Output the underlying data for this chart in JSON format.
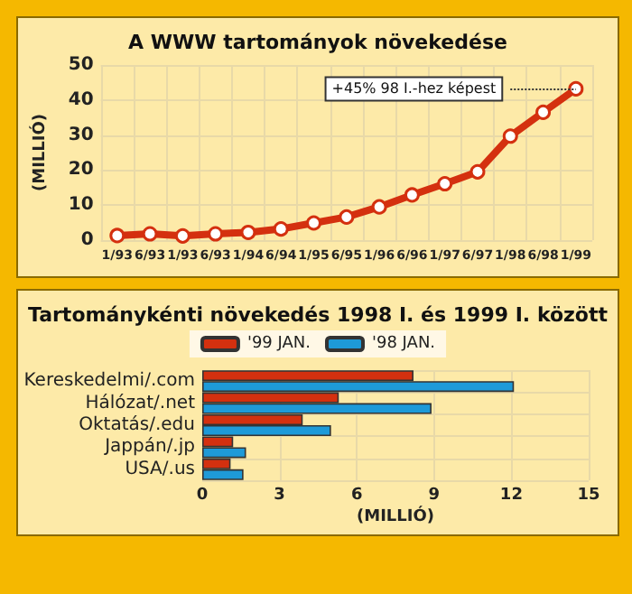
{
  "chart_data": [
    {
      "type": "line",
      "title": "A WWW tartományok növekedése",
      "ylabel": "(MILLIÓ)",
      "categories": [
        "1/93",
        "6/93",
        "1/93",
        "6/93",
        "1/94",
        "6/94",
        "1/95",
        "6/95",
        "1/96",
        "6/96",
        "1/97",
        "6/97",
        "1/98",
        "6/98",
        "1/99"
      ],
      "series": [
        {
          "color": "#d4300f",
          "values": [
            1.3,
            1.8,
            1.2,
            1.8,
            2.2,
            3.2,
            4.9,
            6.6,
            9.5,
            12.9,
            16.1,
            19.5,
            29.7,
            36.5,
            43.2
          ]
        }
      ],
      "ylim": [
        0,
        50
      ],
      "yticks": [
        0,
        10,
        20,
        30,
        40,
        50
      ],
      "grid": true,
      "marker": "circle",
      "annotations": [
        {
          "text": "+45% 98 I.-hez képest",
          "x": "1/99",
          "y": 43.2
        }
      ]
    },
    {
      "type": "bar",
      "orientation": "horizontal",
      "title": "Tartománykénti növekedés 1998 I. és 1999 I. között",
      "xlabel": "(MILLIÓ)",
      "categories": [
        "Kereskedelmi/.com",
        "Hálózat/.net",
        "Oktatás/.edu",
        "Jappán/.jp",
        "USA/.us"
      ],
      "series": [
        {
          "name": "'99 JAN.",
          "color": "#d4300f",
          "values": [
            8.2,
            5.3,
            3.9,
            1.2,
            1.1
          ]
        },
        {
          "name": "'98 JAN.",
          "color": "#1e9ad8",
          "values": [
            12.1,
            8.9,
            5.0,
            1.7,
            1.6
          ]
        }
      ],
      "xlim": [
        0,
        15
      ],
      "xticks": [
        0,
        3,
        6,
        9,
        12,
        15
      ],
      "grid": true,
      "legend": "top"
    }
  ]
}
